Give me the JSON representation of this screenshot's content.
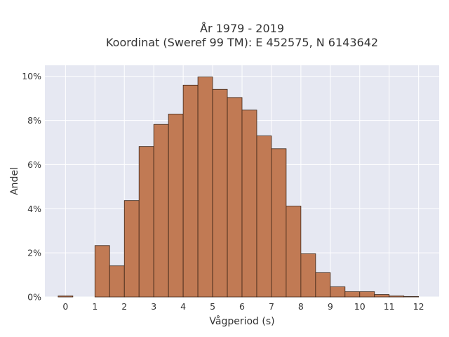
{
  "chart_data": {
    "type": "bar",
    "title_lines": [
      "År 1979 - 2019",
      "Koordinat (Sweref 99 TM): E 452575, N 6143642"
    ],
    "xlabel": "Vågperiod (s)",
    "ylabel": "Andel",
    "xlim": [
      -0.7,
      12.7
    ],
    "ylim": [
      0,
      10.5
    ],
    "bin_width": 0.5,
    "x_ticks": [
      0,
      1,
      2,
      3,
      4,
      5,
      6,
      7,
      8,
      9,
      10,
      11,
      12
    ],
    "x_tick_labels": [
      "0",
      "1",
      "2",
      "3",
      "4",
      "5",
      "6",
      "7",
      "8",
      "9",
      "10",
      "11",
      "12"
    ],
    "y_ticks": [
      0,
      2,
      4,
      6,
      8,
      10
    ],
    "y_tick_labels": [
      "0%",
      "2%",
      "4%",
      "6%",
      "8%",
      "10%"
    ],
    "bins": [
      {
        "start": -0.25,
        "value": 0.05
      },
      {
        "start": 1.0,
        "value": 2.33
      },
      {
        "start": 1.5,
        "value": 1.41
      },
      {
        "start": 2.0,
        "value": 4.37
      },
      {
        "start": 2.5,
        "value": 6.82
      },
      {
        "start": 3.0,
        "value": 7.82
      },
      {
        "start": 3.5,
        "value": 8.29
      },
      {
        "start": 4.0,
        "value": 9.6
      },
      {
        "start": 4.5,
        "value": 9.97
      },
      {
        "start": 5.0,
        "value": 9.41
      },
      {
        "start": 5.5,
        "value": 9.04
      },
      {
        "start": 6.0,
        "value": 8.47
      },
      {
        "start": 6.5,
        "value": 7.3
      },
      {
        "start": 7.0,
        "value": 6.72
      },
      {
        "start": 7.5,
        "value": 4.12
      },
      {
        "start": 8.0,
        "value": 1.96
      },
      {
        "start": 8.5,
        "value": 1.1
      },
      {
        "start": 9.0,
        "value": 0.46
      },
      {
        "start": 9.5,
        "value": 0.24
      },
      {
        "start": 10.0,
        "value": 0.24
      },
      {
        "start": 10.5,
        "value": 0.11
      },
      {
        "start": 11.0,
        "value": 0.05
      },
      {
        "start": 11.5,
        "value": 0.02
      }
    ],
    "bar_color": "#c17a54",
    "bar_edge_color": "#3b2416",
    "plot_background": "#e6e8f2",
    "grid": true,
    "legend": "none"
  }
}
